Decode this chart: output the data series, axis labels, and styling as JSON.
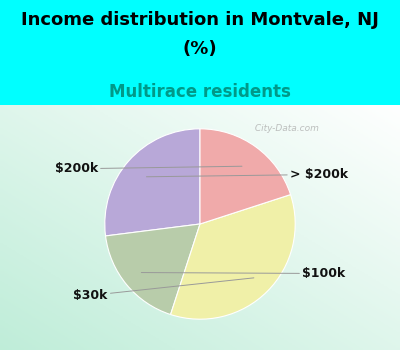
{
  "title_line1": "Income distribution in Montvale, NJ",
  "title_line2": "(%)",
  "subtitle": "Multirace residents",
  "slices": [
    {
      "label": "> $200k",
      "value": 27,
      "color": "#b8a8d8"
    },
    {
      "label": "$100k",
      "value": 18,
      "color": "#b8ccaa"
    },
    {
      "label": "$30k",
      "value": 35,
      "color": "#f0f0a8"
    },
    {
      "label": "$200k",
      "value": 20,
      "color": "#f0aaaa"
    }
  ],
  "startangle": 90,
  "bg_cyan": "#00ffff",
  "title_fontsize": 13,
  "subtitle_fontsize": 12,
  "subtitle_color": "#009988",
  "label_fontsize": 9,
  "watermark": " City-Data.com"
}
